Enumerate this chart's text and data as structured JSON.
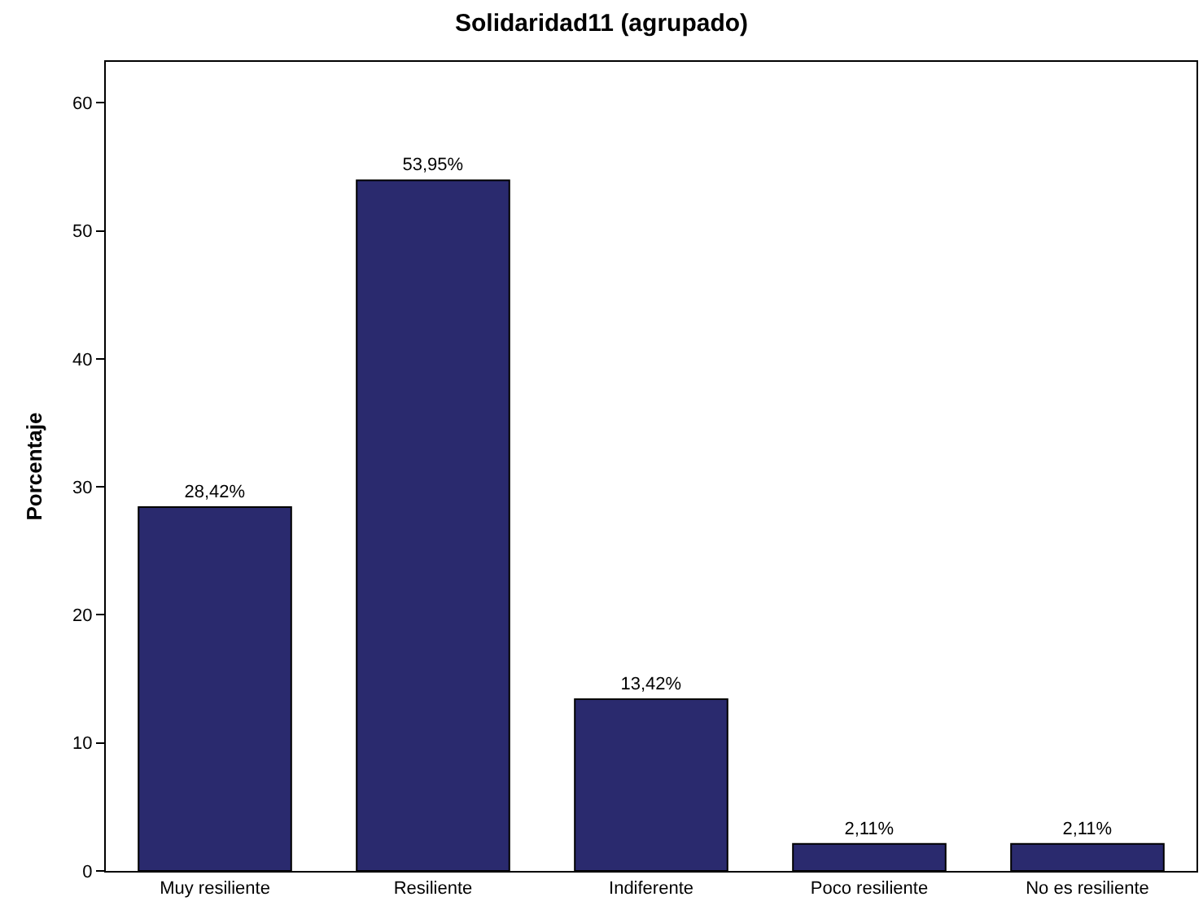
{
  "chart_data": {
    "type": "bar",
    "title": "Solidaridad11 (agrupado)",
    "ylabel": "Porcentaje",
    "categories": [
      "Muy resiliente",
      "Resiliente",
      "Indiferente",
      "Poco resiliente",
      "No es resiliente"
    ],
    "values": [
      28.42,
      53.95,
      13.42,
      2.11,
      2.11
    ],
    "value_labels": [
      "28,42%",
      "53,95%",
      "13,42%",
      "2,11%",
      "2,11%"
    ],
    "color": "#2a2a6e",
    "ylim": [
      0,
      63.2
    ],
    "yticks": [
      0,
      10,
      20,
      30,
      40,
      50,
      60
    ]
  }
}
